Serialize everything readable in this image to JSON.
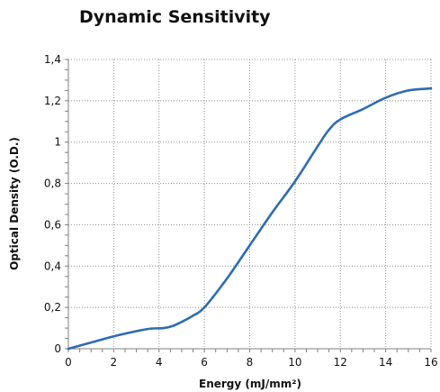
{
  "chart_data": {
    "type": "line",
    "title": "Dynamic Sensitivity",
    "xlabel": "Energy (mJ/mm²)",
    "ylabel": "Optical Density (O.D.)",
    "xlim": [
      0,
      16
    ],
    "ylim": [
      0,
      1.4
    ],
    "x_ticks": [
      0,
      2,
      4,
      6,
      8,
      10,
      12,
      14,
      16
    ],
    "x_tick_labels": [
      "0",
      "2",
      "4",
      "6",
      "8",
      "10",
      "12",
      "14",
      "16"
    ],
    "y_ticks": [
      0,
      0.2,
      0.4,
      0.6,
      0.8,
      1.0,
      1.2,
      1.4
    ],
    "y_tick_labels": [
      "0",
      "0,2",
      "0,4",
      "0,6",
      "0,8",
      "1",
      "1,2",
      "1,4"
    ],
    "grid": true,
    "grid_style": "dotted",
    "series": [
      {
        "color": "#2e6bb5",
        "x": [
          0,
          1,
          2,
          3,
          3.6,
          4.2,
          4.6,
          5.0,
          5.5,
          6.0,
          7.0,
          8.0,
          9.0,
          10.0,
          11.0,
          11.5,
          12.0,
          13.0,
          14.0,
          15.0,
          16.0
        ],
        "y": [
          0,
          0.03,
          0.06,
          0.085,
          0.097,
          0.1,
          0.11,
          0.13,
          0.16,
          0.2,
          0.34,
          0.5,
          0.66,
          0.81,
          0.98,
          1.06,
          1.11,
          1.16,
          1.215,
          1.25,
          1.26
        ]
      }
    ]
  }
}
